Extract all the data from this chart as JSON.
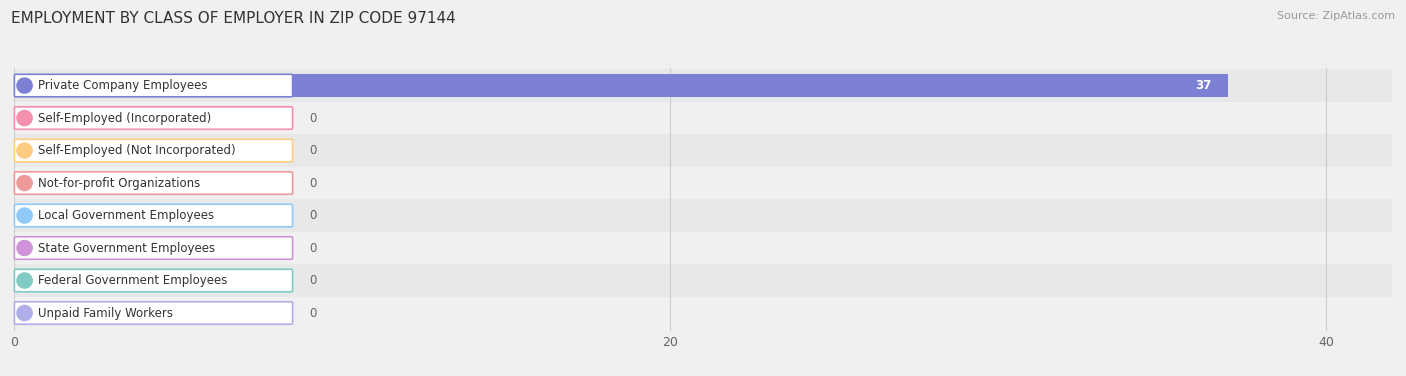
{
  "title": "EMPLOYMENT BY CLASS OF EMPLOYER IN ZIP CODE 97144",
  "source": "Source: ZipAtlas.com",
  "categories": [
    "Private Company Employees",
    "Self-Employed (Incorporated)",
    "Self-Employed (Not Incorporated)",
    "Not-for-profit Organizations",
    "Local Government Employees",
    "State Government Employees",
    "Federal Government Employees",
    "Unpaid Family Workers"
  ],
  "values": [
    37,
    0,
    0,
    0,
    0,
    0,
    0,
    0
  ],
  "bar_colors": [
    "#7b80d4",
    "#f48fac",
    "#ffcc80",
    "#ef9a9a",
    "#90caf9",
    "#ce93d8",
    "#80cbc4",
    "#b0aee8"
  ],
  "xlim": [
    0,
    42
  ],
  "xticks": [
    0,
    20,
    40
  ],
  "title_fontsize": 11,
  "source_fontsize": 8,
  "bar_label_fontsize": 8.5,
  "cat_label_fontsize": 8.5,
  "tick_fontsize": 9
}
